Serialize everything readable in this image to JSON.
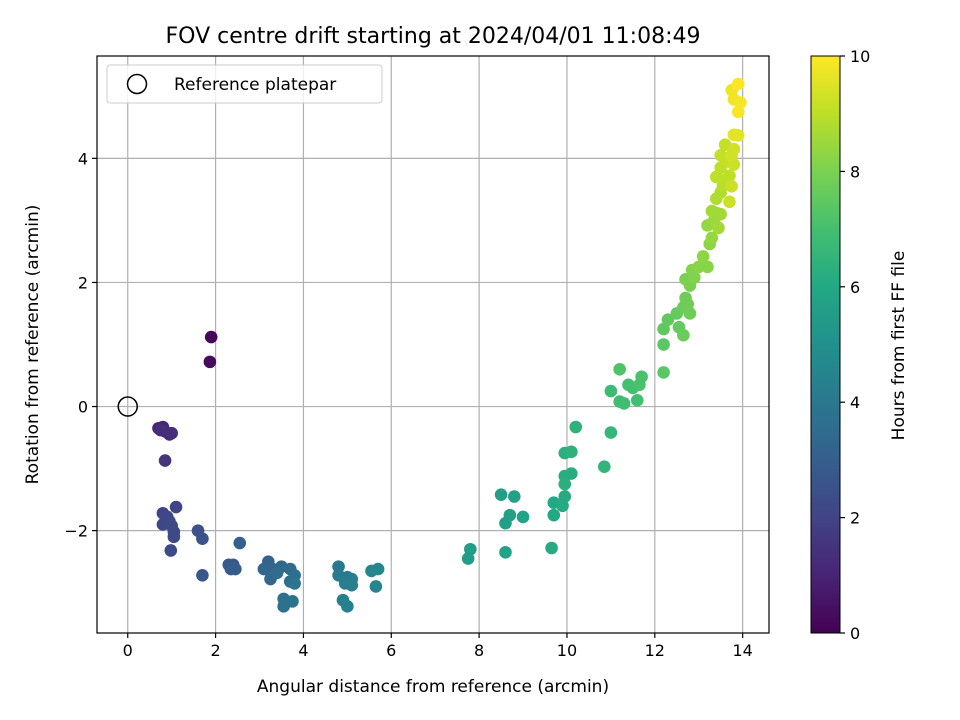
{
  "chart_data": {
    "type": "scatter",
    "title": "FOV centre drift starting at 2024/04/01 11:08:49",
    "xlabel": "Angular distance from reference (arcmin)",
    "ylabel": "Rotation from reference (arcmin)",
    "xlim": [
      -0.7,
      14.6
    ],
    "ylim": [
      -3.65,
      5.65
    ],
    "xticks": [
      0,
      2,
      4,
      6,
      8,
      10,
      12,
      14
    ],
    "xtick_labels": [
      "0",
      "2",
      "4",
      "6",
      "8",
      "10",
      "12",
      "14"
    ],
    "yticks": [
      -2,
      0,
      2,
      4
    ],
    "ytick_labels": [
      "−2",
      "0",
      "2",
      "4"
    ],
    "grid": true,
    "legend": {
      "position": "top-left",
      "entries": [
        "Reference platepar"
      ]
    },
    "reference_point": {
      "x": 0,
      "y": 0,
      "marker": "hollow-circle"
    },
    "colorbar": {
      "label": "Hours from first FF file",
      "range": [
        0,
        10
      ],
      "ticks": [
        0,
        2,
        4,
        6,
        8,
        10
      ],
      "tick_labels": [
        "0",
        "2",
        "4",
        "6",
        "8",
        "10"
      ],
      "colormap": "viridis"
    },
    "points": [
      [
        1.9,
        1.12,
        0.2
      ],
      [
        1.87,
        0.72,
        0.3
      ],
      [
        0.7,
        -0.35,
        1.0
      ],
      [
        0.8,
        -0.33,
        1.1
      ],
      [
        0.85,
        -0.4,
        1.2
      ],
      [
        0.95,
        -0.45,
        1.2
      ],
      [
        1.0,
        -0.43,
        1.3
      ],
      [
        0.75,
        -0.38,
        1.3
      ],
      [
        0.85,
        -0.87,
        1.5
      ],
      [
        1.1,
        -1.62,
        2.0
      ],
      [
        0.8,
        -1.72,
        2.0
      ],
      [
        0.9,
        -1.78,
        2.1
      ],
      [
        0.95,
        -1.85,
        2.1
      ],
      [
        0.8,
        -1.9,
        2.1
      ],
      [
        1.0,
        -1.92,
        2.2
      ],
      [
        1.05,
        -2.02,
        2.2
      ],
      [
        1.05,
        -2.1,
        2.2
      ],
      [
        0.98,
        -2.32,
        2.3
      ],
      [
        1.6,
        -2.0,
        2.5
      ],
      [
        1.7,
        -2.13,
        2.6
      ],
      [
        1.7,
        -2.72,
        2.7
      ],
      [
        2.3,
        -2.55,
        2.8
      ],
      [
        2.4,
        -2.55,
        2.8
      ],
      [
        2.35,
        -2.62,
        2.9
      ],
      [
        2.45,
        -2.62,
        2.9
      ],
      [
        2.55,
        -2.2,
        3.0
      ],
      [
        3.2,
        -2.5,
        3.2
      ],
      [
        3.1,
        -2.62,
        3.3
      ],
      [
        3.3,
        -2.62,
        3.3
      ],
      [
        3.5,
        -2.58,
        3.4
      ],
      [
        3.25,
        -2.78,
        3.4
      ],
      [
        3.4,
        -2.68,
        3.5
      ],
      [
        3.7,
        -2.62,
        3.5
      ],
      [
        3.8,
        -2.72,
        3.6
      ],
      [
        3.7,
        -2.82,
        3.6
      ],
      [
        3.55,
        -3.1,
        3.7
      ],
      [
        3.55,
        -3.22,
        3.7
      ],
      [
        3.75,
        -3.14,
        3.8
      ],
      [
        3.8,
        -2.85,
        3.8
      ],
      [
        4.8,
        -2.58,
        4.0
      ],
      [
        4.8,
        -2.72,
        4.1
      ],
      [
        5.0,
        -2.75,
        4.1
      ],
      [
        5.1,
        -2.78,
        4.2
      ],
      [
        4.95,
        -2.85,
        4.2
      ],
      [
        5.1,
        -2.88,
        4.2
      ],
      [
        4.9,
        -3.12,
        4.3
      ],
      [
        5.0,
        -3.22,
        4.3
      ],
      [
        5.55,
        -2.65,
        4.5
      ],
      [
        5.7,
        -2.62,
        4.5
      ],
      [
        5.65,
        -2.9,
        4.6
      ],
      [
        7.8,
        -2.3,
        5.5
      ],
      [
        7.75,
        -2.45,
        5.5
      ],
      [
        8.5,
        -1.42,
        5.6
      ],
      [
        8.6,
        -1.88,
        5.6
      ],
      [
        8.7,
        -1.75,
        5.7
      ],
      [
        8.8,
        -1.45,
        5.7
      ],
      [
        8.6,
        -2.35,
        5.8
      ],
      [
        9.0,
        -1.78,
        5.8
      ],
      [
        9.7,
        -1.55,
        6.0
      ],
      [
        9.7,
        -1.75,
        6.0
      ],
      [
        9.65,
        -2.28,
        6.1
      ],
      [
        9.95,
        -1.45,
        6.1
      ],
      [
        9.9,
        -1.6,
        6.1
      ],
      [
        9.95,
        -1.12,
        6.2
      ],
      [
        10.1,
        -1.08,
        6.2
      ],
      [
        9.95,
        -1.25,
        6.3
      ],
      [
        9.95,
        -0.75,
        6.3
      ],
      [
        10.1,
        -0.73,
        6.4
      ],
      [
        10.2,
        -0.33,
        6.4
      ],
      [
        10.85,
        -0.97,
        6.5
      ],
      [
        11.0,
        -0.42,
        6.6
      ],
      [
        11.0,
        0.25,
        6.8
      ],
      [
        11.2,
        0.08,
        6.9
      ],
      [
        11.3,
        0.05,
        6.9
      ],
      [
        11.4,
        0.35,
        7.0
      ],
      [
        11.5,
        0.3,
        7.0
      ],
      [
        11.6,
        0.1,
        7.0
      ],
      [
        11.65,
        0.35,
        7.1
      ],
      [
        11.7,
        0.48,
        7.1
      ],
      [
        11.2,
        0.6,
        7.2
      ],
      [
        12.2,
        0.55,
        7.4
      ],
      [
        12.2,
        1.0,
        7.4
      ],
      [
        12.2,
        1.25,
        7.5
      ],
      [
        12.3,
        1.4,
        7.5
      ],
      [
        12.5,
        1.5,
        7.6
      ],
      [
        12.55,
        1.28,
        7.6
      ],
      [
        12.65,
        1.15,
        7.7
      ],
      [
        12.65,
        1.6,
        7.7
      ],
      [
        12.7,
        1.75,
        7.8
      ],
      [
        12.8,
        1.5,
        7.8
      ],
      [
        12.75,
        1.65,
        7.8
      ],
      [
        12.7,
        2.05,
        8.0
      ],
      [
        12.8,
        1.95,
        8.0
      ],
      [
        12.9,
        2.08,
        8.1
      ],
      [
        12.85,
        2.2,
        8.1
      ],
      [
        13.0,
        2.25,
        8.2
      ],
      [
        13.2,
        2.25,
        8.2
      ],
      [
        13.1,
        2.42,
        8.3
      ],
      [
        13.25,
        2.62,
        8.3
      ],
      [
        13.3,
        2.72,
        8.4
      ],
      [
        13.2,
        2.92,
        8.4
      ],
      [
        13.35,
        3.0,
        8.5
      ],
      [
        13.4,
        3.12,
        8.5
      ],
      [
        13.3,
        3.15,
        8.6
      ],
      [
        13.5,
        3.1,
        8.6
      ],
      [
        13.45,
        2.88,
        8.6
      ],
      [
        13.4,
        3.35,
        8.8
      ],
      [
        13.5,
        3.45,
        8.8
      ],
      [
        13.55,
        3.55,
        8.9
      ],
      [
        13.6,
        3.65,
        8.9
      ],
      [
        13.7,
        3.72,
        9.0
      ],
      [
        13.4,
        3.7,
        9.0
      ],
      [
        13.5,
        3.85,
        9.0
      ],
      [
        13.65,
        3.95,
        9.1
      ],
      [
        13.5,
        4.05,
        9.1
      ],
      [
        13.6,
        4.22,
        9.1
      ],
      [
        13.7,
        3.3,
        9.2
      ],
      [
        13.75,
        3.55,
        9.2
      ],
      [
        13.8,
        3.9,
        9.2
      ],
      [
        13.75,
        4.05,
        9.3
      ],
      [
        13.8,
        4.15,
        9.3
      ],
      [
        13.8,
        4.38,
        9.6
      ],
      [
        13.9,
        4.37,
        9.6
      ],
      [
        13.8,
        4.95,
        9.8
      ],
      [
        13.75,
        5.1,
        9.8
      ],
      [
        13.9,
        4.75,
        9.9
      ],
      [
        13.95,
        4.9,
        9.9
      ],
      [
        13.9,
        5.2,
        10.0
      ]
    ]
  }
}
